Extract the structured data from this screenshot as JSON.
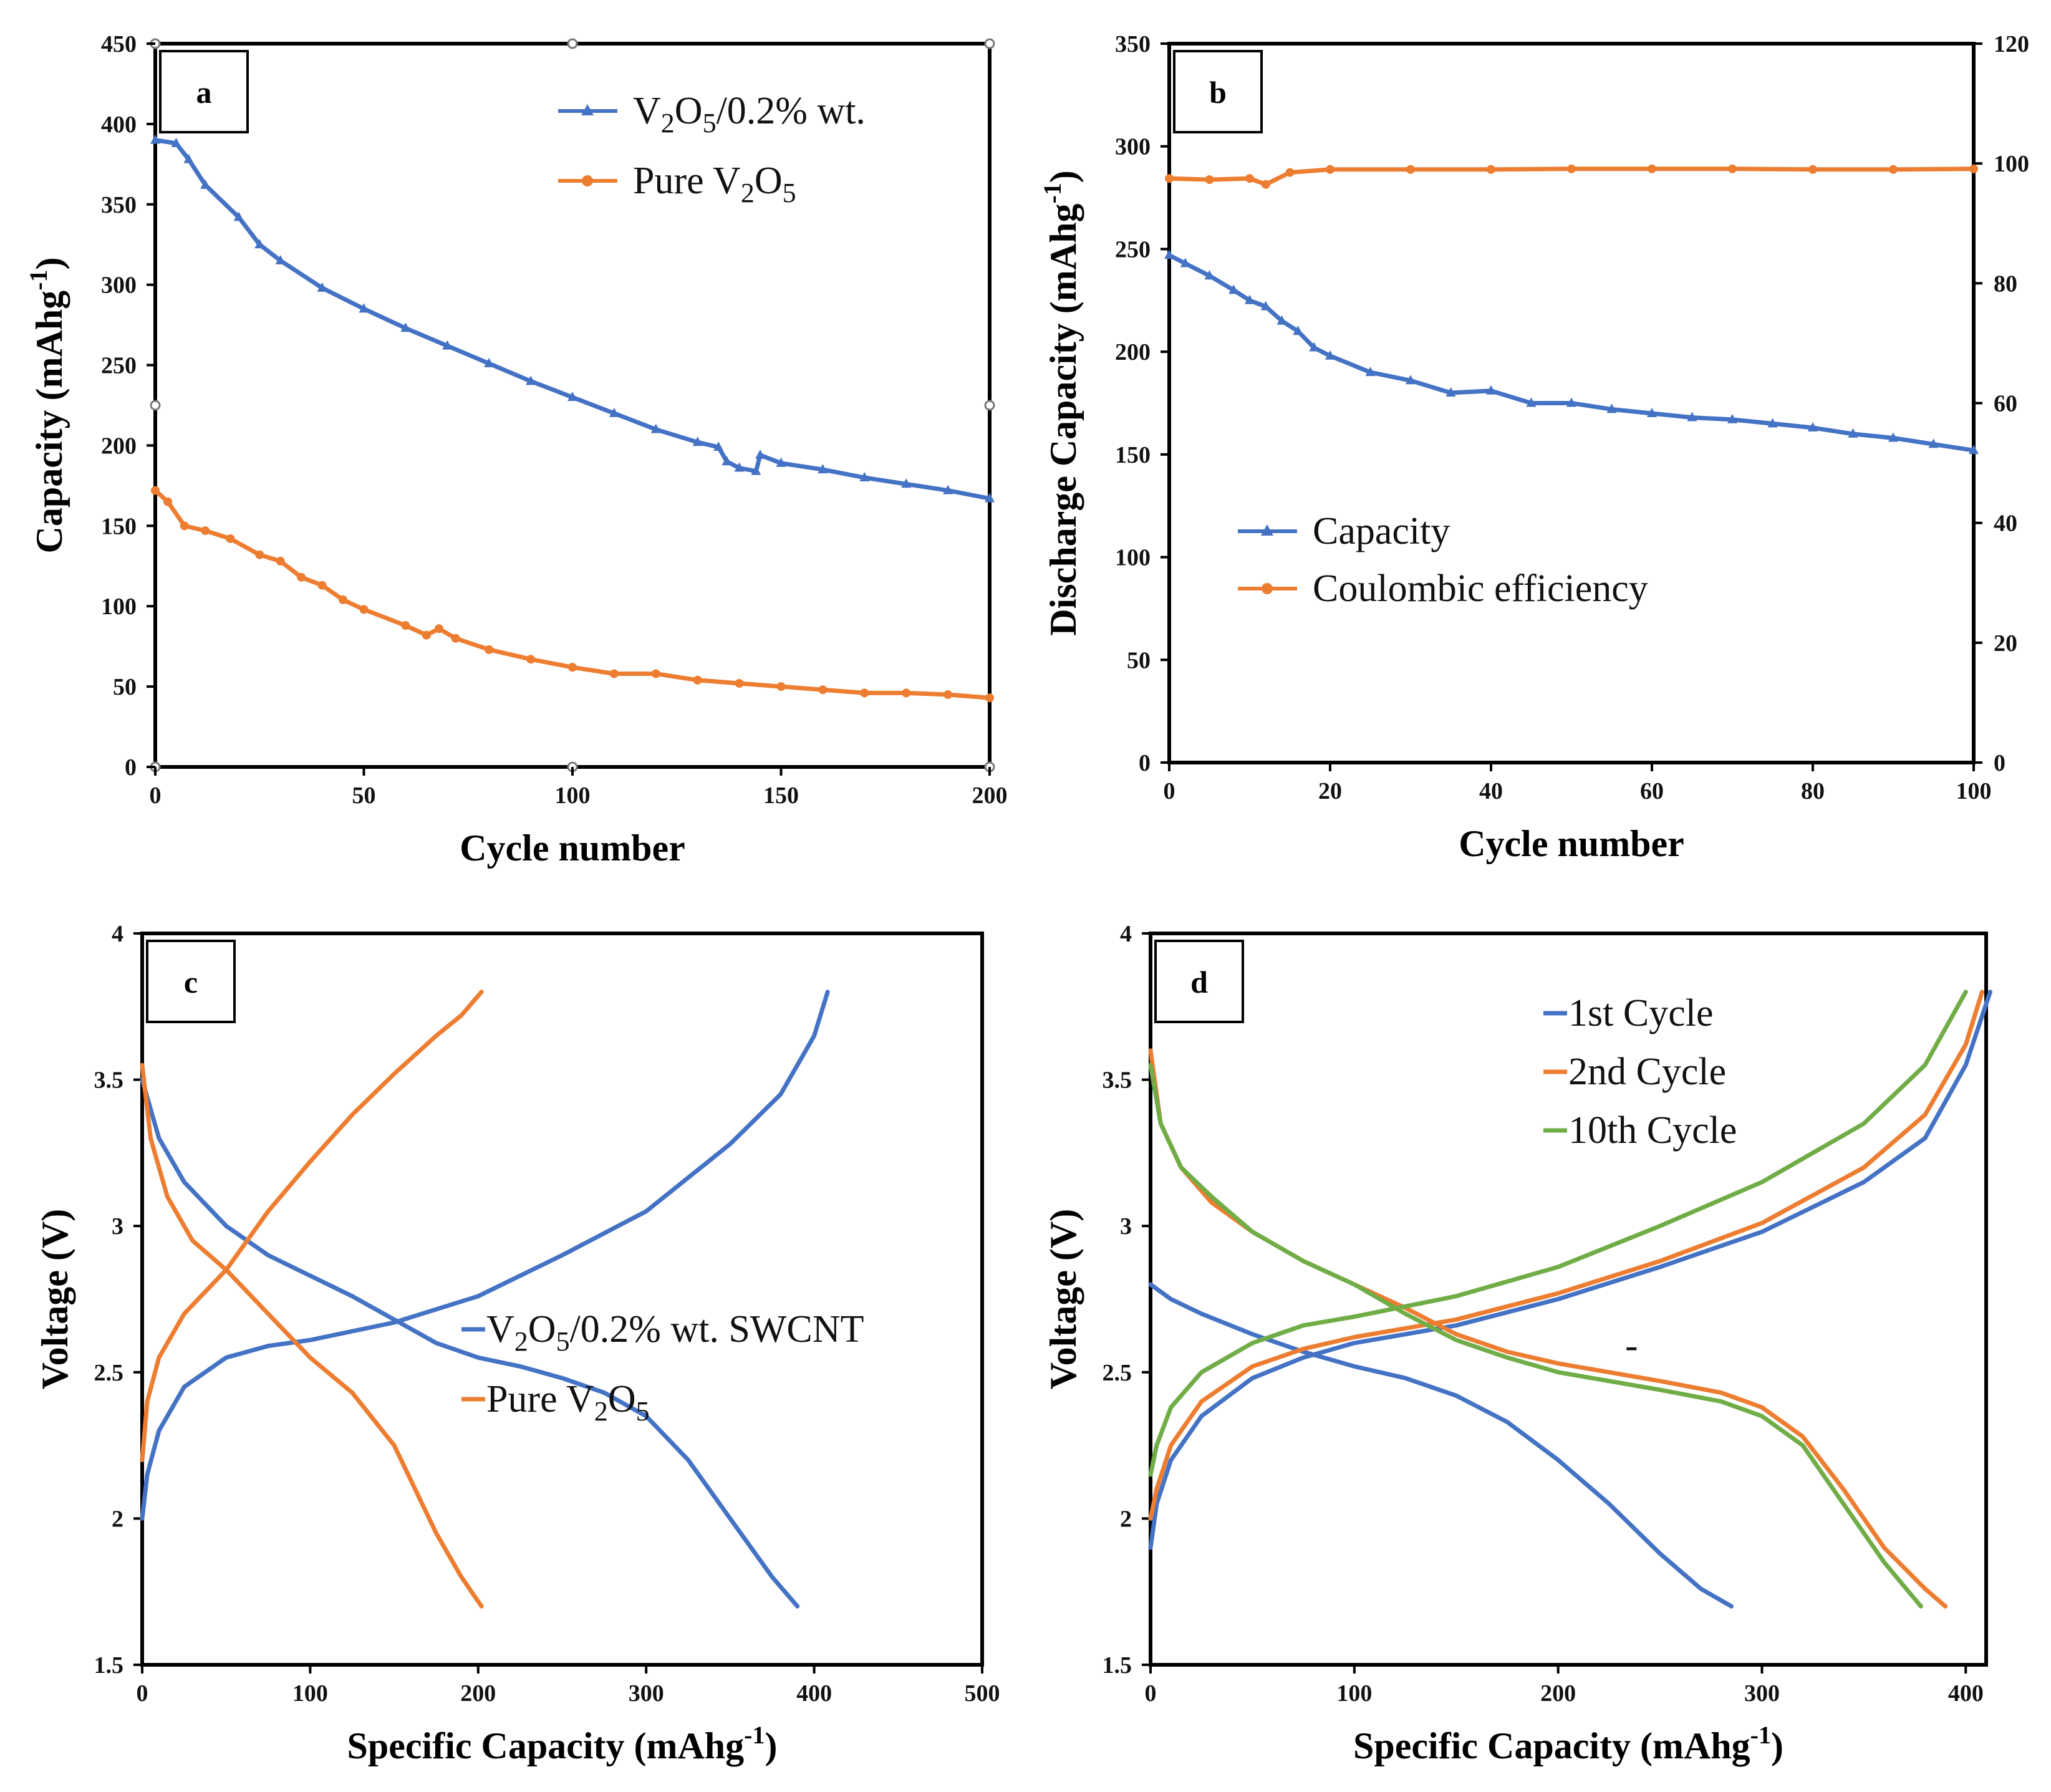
{
  "figure": {
    "colors": {
      "blue": "#4472C4",
      "orange": "#ED7D31",
      "green": "#70AD47",
      "axis": "#000000"
    }
  },
  "chart_data": [
    {
      "panel": "a",
      "type": "line",
      "xlabel": "Cycle number",
      "ylabel": "Capacity (mAhg-1)",
      "ylabel_main": "Capacity (mAhg",
      "ylabel_sup": "-1",
      "ylabel_tail": ")",
      "xlim": [
        0,
        200
      ],
      "ylim": [
        0,
        450
      ],
      "xticks": [
        0,
        50,
        100,
        150,
        200
      ],
      "yticks": [
        0,
        50,
        100,
        150,
        200,
        250,
        300,
        350,
        400,
        450
      ],
      "legend_position": "top-right",
      "series": [
        {
          "name": "V2O5/0.2% wt.",
          "legend_parts": [
            "V",
            "2",
            "O",
            "5",
            "/0.2% wt."
          ],
          "color": "#4472C4",
          "marker": "triangle",
          "x": [
            0,
            5,
            8,
            12,
            20,
            25,
            30,
            40,
            50,
            60,
            70,
            80,
            90,
            100,
            110,
            120,
            130,
            135,
            137,
            140,
            144,
            145,
            150,
            160,
            170,
            180,
            190,
            200
          ],
          "y": [
            390,
            388,
            378,
            362,
            342,
            325,
            315,
            298,
            285,
            273,
            262,
            251,
            240,
            230,
            220,
            210,
            202,
            199,
            190,
            186,
            184,
            194,
            189,
            185,
            180,
            176,
            172,
            167
          ]
        },
        {
          "name": "Pure V2O5",
          "legend_parts": [
            "Pure V",
            "2",
            "O",
            "5"
          ],
          "color": "#ED7D31",
          "marker": "circle",
          "x": [
            0,
            3,
            7,
            12,
            18,
            25,
            30,
            35,
            40,
            45,
            50,
            60,
            65,
            68,
            72,
            80,
            90,
            100,
            110,
            120,
            130,
            140,
            150,
            160,
            170,
            180,
            190,
            200
          ],
          "y": [
            172,
            165,
            150,
            147,
            142,
            132,
            128,
            118,
            113,
            104,
            98,
            88,
            82,
            86,
            80,
            73,
            67,
            62,
            58,
            58,
            54,
            52,
            50,
            48,
            46,
            46,
            45,
            43
          ]
        }
      ]
    },
    {
      "panel": "b",
      "type": "line",
      "xlabel": "Cycle number",
      "ylabel": "Discharge Capacity (mAhg-1)",
      "ylabel_main": "Discharge Capacity (mAhg",
      "ylabel_sup": "-1",
      "ylabel_tail": ")",
      "xlim": [
        0,
        100
      ],
      "ylim": [
        0,
        350
      ],
      "y2lim": [
        0,
        120
      ],
      "xticks": [
        0,
        20,
        40,
        60,
        80,
        100
      ],
      "yticks": [
        0,
        50,
        100,
        150,
        200,
        250,
        300,
        350
      ],
      "y2ticks": [
        0,
        20,
        40,
        60,
        80,
        100,
        120
      ],
      "legend_position": "center-left",
      "series": [
        {
          "name": "Capacity",
          "axis": "left",
          "color": "#4472C4",
          "marker": "triangle",
          "x": [
            0,
            2,
            5,
            8,
            10,
            12,
            14,
            16,
            18,
            20,
            25,
            30,
            35,
            40,
            45,
            50,
            55,
            60,
            65,
            70,
            75,
            80,
            85,
            90,
            95,
            100
          ],
          "y": [
            247,
            243,
            237,
            230,
            225,
            222,
            215,
            210,
            202,
            198,
            190,
            186,
            180,
            181,
            175,
            175,
            172,
            170,
            168,
            167,
            165,
            163,
            160,
            158,
            155,
            152
          ]
        },
        {
          "name": "Coulombic efficiency",
          "axis": "right",
          "color": "#ED7D31",
          "marker": "circle",
          "x": [
            0,
            5,
            10,
            12,
            15,
            20,
            30,
            40,
            50,
            60,
            70,
            80,
            90,
            100
          ],
          "y": [
            97.5,
            97.3,
            97.5,
            96.5,
            98.5,
            99.0,
            99.0,
            99.0,
            99.1,
            99.1,
            99.1,
            99.0,
            99.0,
            99.1
          ]
        }
      ]
    },
    {
      "panel": "c",
      "type": "line",
      "xlabel": "Specific Capacity (mAhg-1)",
      "xlabel_main": "Specific Capacity (mAhg",
      "xlabel_sup": "-1",
      "xlabel_tail": ")",
      "ylabel": "Voltage (V)",
      "xlim": [
        0,
        500
      ],
      "ylim": [
        1.5,
        4
      ],
      "xticks": [
        0,
        100,
        200,
        300,
        400,
        500
      ],
      "yticks": [
        1.5,
        2,
        2.5,
        3,
        3.5,
        4
      ],
      "legend_position": "center-right",
      "series": [
        {
          "name": "V2O5/0.2% wt. SWCNT discharge",
          "legend_parts": [
            "V",
            "2",
            "O",
            "5",
            "/0.2% wt. SWCNT"
          ],
          "color": "#4472C4",
          "x": [
            0,
            10,
            25,
            50,
            75,
            100,
            125,
            150,
            175,
            200,
            225,
            250,
            275,
            300,
            325,
            350,
            375,
            390
          ],
          "y": [
            3.5,
            3.3,
            3.15,
            3.0,
            2.9,
            2.83,
            2.76,
            2.68,
            2.6,
            2.55,
            2.52,
            2.48,
            2.43,
            2.35,
            2.2,
            2.0,
            1.8,
            1.7
          ]
        },
        {
          "name": "V2O5/0.2% wt. SWCNT charge",
          "color": "#4472C4",
          "x": [
            0,
            3,
            10,
            25,
            50,
            75,
            100,
            150,
            200,
            250,
            300,
            350,
            380,
            400,
            408
          ],
          "y": [
            2.0,
            2.15,
            2.3,
            2.45,
            2.55,
            2.59,
            2.61,
            2.67,
            2.76,
            2.9,
            3.05,
            3.28,
            3.45,
            3.65,
            3.8
          ]
        },
        {
          "name": "Pure V2O5 discharge",
          "legend_parts": [
            "Pure V",
            "2",
            "O",
            "5"
          ],
          "color": "#ED7D31",
          "x": [
            0,
            5,
            15,
            30,
            50,
            75,
            100,
            125,
            150,
            175,
            190,
            202
          ],
          "y": [
            3.55,
            3.3,
            3.1,
            2.95,
            2.85,
            2.7,
            2.55,
            2.43,
            2.25,
            1.95,
            1.8,
            1.7
          ]
        },
        {
          "name": "Pure V2O5 charge",
          "color": "#ED7D31",
          "x": [
            0,
            3,
            10,
            25,
            50,
            75,
            100,
            125,
            150,
            175,
            190,
            202
          ],
          "y": [
            2.2,
            2.4,
            2.55,
            2.7,
            2.85,
            3.05,
            3.22,
            3.38,
            3.52,
            3.65,
            3.72,
            3.8
          ]
        }
      ]
    },
    {
      "panel": "d",
      "type": "line",
      "xlabel": "Specific Capacity (mAhg-1)",
      "xlabel_main": "Specific Capacity (mAhg",
      "xlabel_sup": "-1",
      "xlabel_tail": ")",
      "ylabel": "Voltage (V)",
      "xlim": [
        0,
        410
      ],
      "ylim": [
        1.5,
        4
      ],
      "xticks": [
        0,
        100,
        200,
        300,
        400
      ],
      "yticks": [
        1.5,
        2,
        2.5,
        3,
        3.5,
        4
      ],
      "annotation": "-",
      "legend_position": "top-right",
      "series": [
        {
          "name": "1st Cycle",
          "color": "#4472C4",
          "x": [
            0,
            10,
            25,
            50,
            75,
            100,
            125,
            150,
            175,
            200,
            225,
            250,
            270,
            285
          ],
          "y": [
            2.8,
            2.75,
            2.7,
            2.63,
            2.57,
            2.52,
            2.48,
            2.42,
            2.33,
            2.2,
            2.05,
            1.88,
            1.76,
            1.7
          ]
        },
        {
          "name": "1st Cycle charge",
          "color": "#4472C4",
          "x": [
            0,
            3,
            10,
            25,
            50,
            75,
            100,
            150,
            200,
            250,
            300,
            350,
            380,
            400,
            412
          ],
          "y": [
            1.9,
            2.05,
            2.2,
            2.35,
            2.48,
            2.55,
            2.6,
            2.66,
            2.75,
            2.86,
            2.98,
            3.15,
            3.3,
            3.55,
            3.8
          ]
        },
        {
          "name": "2nd Cycle",
          "color": "#ED7D31",
          "x": [
            0,
            5,
            15,
            30,
            50,
            75,
            100,
            125,
            150,
            175,
            200,
            250,
            280,
            300,
            320,
            340,
            360,
            380,
            390
          ],
          "y": [
            3.6,
            3.35,
            3.2,
            3.08,
            2.98,
            2.88,
            2.8,
            2.72,
            2.63,
            2.57,
            2.53,
            2.47,
            2.43,
            2.38,
            2.28,
            2.1,
            1.9,
            1.76,
            1.7
          ]
        },
        {
          "name": "2nd Cycle charge",
          "color": "#ED7D31",
          "x": [
            0,
            3,
            10,
            25,
            50,
            75,
            100,
            150,
            200,
            250,
            300,
            350,
            380,
            400,
            408
          ],
          "y": [
            2.0,
            2.1,
            2.25,
            2.4,
            2.52,
            2.58,
            2.62,
            2.68,
            2.77,
            2.88,
            3.01,
            3.2,
            3.38,
            3.62,
            3.8
          ]
        },
        {
          "name": "10th Cycle",
          "color": "#70AD47",
          "x": [
            0,
            5,
            15,
            30,
            50,
            75,
            100,
            125,
            150,
            175,
            200,
            250,
            280,
            300,
            320,
            340,
            360,
            378
          ],
          "y": [
            3.55,
            3.35,
            3.2,
            3.1,
            2.98,
            2.88,
            2.8,
            2.7,
            2.61,
            2.55,
            2.5,
            2.44,
            2.4,
            2.35,
            2.25,
            2.05,
            1.85,
            1.7
          ]
        },
        {
          "name": "10th Cycle charge",
          "color": "#70AD47",
          "x": [
            0,
            3,
            10,
            25,
            50,
            75,
            100,
            150,
            200,
            250,
            300,
            350,
            380,
            400
          ],
          "y": [
            2.15,
            2.25,
            2.38,
            2.5,
            2.6,
            2.66,
            2.69,
            2.76,
            2.86,
            3.0,
            3.15,
            3.35,
            3.55,
            3.8
          ]
        }
      ]
    }
  ]
}
